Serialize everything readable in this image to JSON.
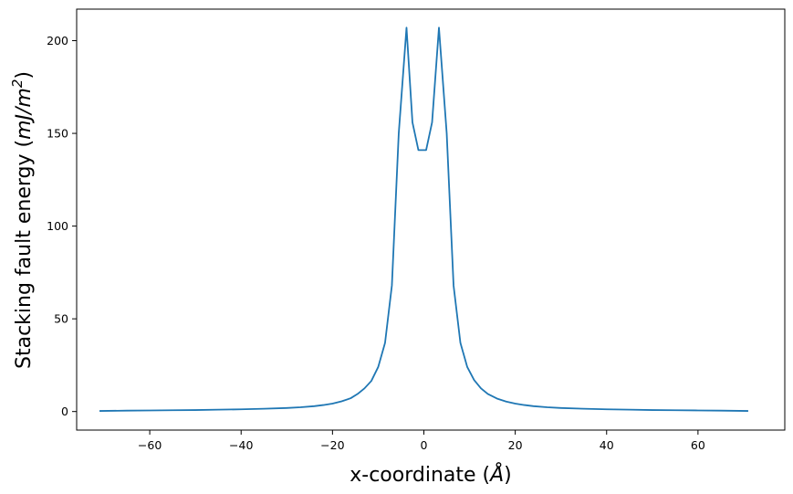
{
  "chart_data": {
    "type": "line",
    "xlabel": "x-coordinate (Å)",
    "xlabel_main": "x-coordinate (",
    "xlabel_unit": "Å",
    "xlabel_close": ")",
    "ylabel": "Stacking fault energy (mJ/m²)",
    "ylabel_main": "Stacking fault energy (",
    "ylabel_unit": "mJ/m",
    "ylabel_exp": "2",
    "ylabel_close": ")",
    "xlim": [
      -76,
      79
    ],
    "ylim": [
      -10,
      217
    ],
    "x_ticks": [
      -60,
      -40,
      -20,
      0,
      20,
      40,
      60
    ],
    "x_tick_labels": [
      "−60",
      "−40",
      "−20",
      "0",
      "20",
      "40",
      "60"
    ],
    "y_ticks": [
      0,
      50,
      100,
      150,
      200
    ],
    "y_tick_labels": [
      "0",
      "50",
      "100",
      "150",
      "200"
    ],
    "grid": false,
    "line_color": "#1f77b4",
    "series": [
      {
        "points": [
          [
            -71,
            0.3
          ],
          [
            -65,
            0.5
          ],
          [
            -60,
            0.6
          ],
          [
            -55,
            0.7
          ],
          [
            -50,
            0.8
          ],
          [
            -45,
            1.0
          ],
          [
            -40,
            1.2
          ],
          [
            -35,
            1.5
          ],
          [
            -30,
            1.9
          ],
          [
            -27,
            2.3
          ],
          [
            -24,
            2.9
          ],
          [
            -22,
            3.5
          ],
          [
            -20,
            4.3
          ],
          [
            -18,
            5.5
          ],
          [
            -16,
            7.2
          ],
          [
            -14.5,
            9.5
          ],
          [
            -13,
            12.5
          ],
          [
            -11.5,
            16.5
          ],
          [
            -10,
            24
          ],
          [
            -8.5,
            37
          ],
          [
            -7,
            68
          ],
          [
            -5.5,
            150
          ],
          [
            -3.8,
            207
          ],
          [
            -2.5,
            156
          ],
          [
            -1.2,
            141
          ],
          [
            0.5,
            141
          ],
          [
            1.8,
            156
          ],
          [
            3.3,
            207
          ],
          [
            5,
            150
          ],
          [
            6.5,
            68
          ],
          [
            8,
            37
          ],
          [
            9.5,
            24
          ],
          [
            11,
            17
          ],
          [
            12.5,
            12.5
          ],
          [
            14,
            9.5
          ],
          [
            16,
            7
          ],
          [
            18,
            5.4
          ],
          [
            20,
            4.3
          ],
          [
            22,
            3.5
          ],
          [
            24,
            2.9
          ],
          [
            27,
            2.3
          ],
          [
            30,
            1.9
          ],
          [
            35,
            1.5
          ],
          [
            40,
            1.2
          ],
          [
            45,
            1.0
          ],
          [
            50,
            0.8
          ],
          [
            55,
            0.7
          ],
          [
            60,
            0.6
          ],
          [
            65,
            0.5
          ],
          [
            71,
            0.3
          ]
        ]
      }
    ]
  }
}
